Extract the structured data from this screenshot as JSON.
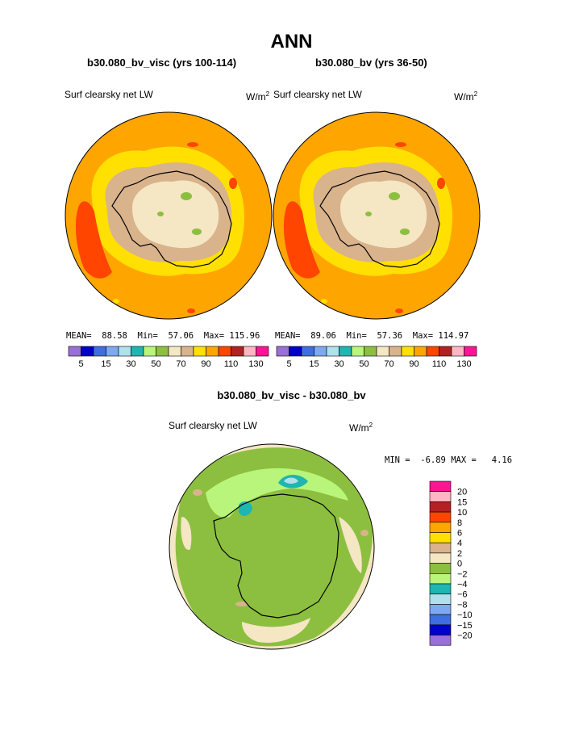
{
  "header": {
    "title": "ANN"
  },
  "panels": [
    {
      "case": "b30.080_bv_visc (yrs 100-114)",
      "variable": "Surf clearsky net LW",
      "units": "W/m",
      "units_sup": "2",
      "stats": {
        "mean_label": "MEAN=",
        "mean": "88.58",
        "min_label": "Min=",
        "min": "57.06",
        "max_label": "Max=",
        "max": "115.96"
      }
    },
    {
      "case": "b30.080_bv (yrs 36-50)",
      "variable": "Surf clearsky net LW",
      "units": "W/m",
      "units_sup": "2",
      "stats": {
        "mean_label": "MEAN=",
        "mean": "89.06",
        "min_label": "Min=",
        "min": "57.36",
        "max_label": "Max=",
        "max": "114.97"
      }
    }
  ],
  "colorbar": {
    "colors": [
      "#9a6fd6",
      "#0000c8",
      "#3f6ee0",
      "#7ea8ef",
      "#afe0ec",
      "#1fb5b0",
      "#b8f57a",
      "#8cbf3f",
      "#f5e6c4",
      "#d9b38c",
      "#ffe000",
      "#ffa500",
      "#ff4500",
      "#b22222",
      "#ffb6c1",
      "#ff1493"
    ],
    "labels": [
      "5",
      "15",
      "30",
      "50",
      "70",
      "90",
      "110",
      "130"
    ]
  },
  "difference": {
    "title": "b30.080_bv_visc - b30.080_bv",
    "variable": "Surf clearsky net LW",
    "units": "W/m",
    "units_sup": "2",
    "min_label": "MIN =",
    "min": "-6.89",
    "max_label": "MAX =",
    "max": "4.16"
  },
  "legend": {
    "colors": [
      "#ff1493",
      "#ffb6c1",
      "#b22222",
      "#ff4500",
      "#ffa500",
      "#ffe000",
      "#d9b38c",
      "#f5e6c4",
      "#8cbf3f",
      "#b8f57a",
      "#1fb5b0",
      "#afe0ec",
      "#7ea8ef",
      "#3f6ee0",
      "#0000c8",
      "#9a6fd6"
    ],
    "labels": [
      "20",
      "15",
      "10",
      "8",
      "6",
      "4",
      "2",
      "0",
      "−2",
      "−4",
      "−6",
      "−8",
      "−10",
      "−15",
      "−20"
    ]
  }
}
